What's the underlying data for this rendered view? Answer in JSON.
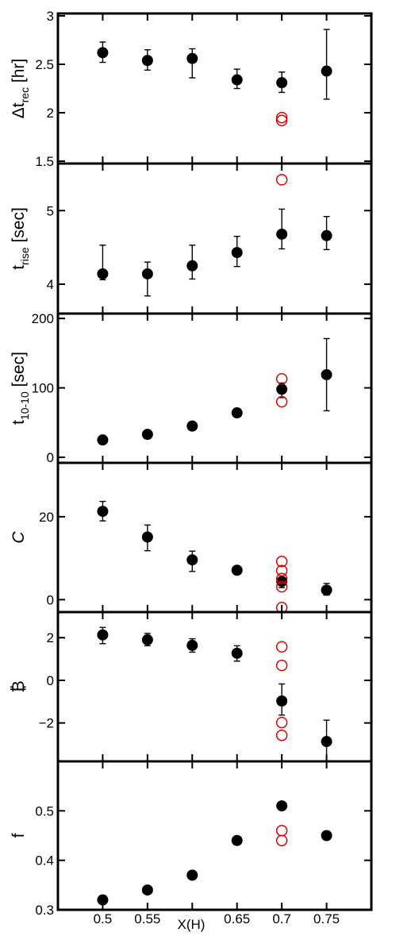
{
  "chart_data": {
    "type": "scatter",
    "x_axis": {
      "label": "X(H)",
      "ticks": [
        0.5,
        0.55,
        0.6,
        0.65,
        0.7,
        0.75
      ],
      "tick_labels": [
        "0.5",
        "0.55",
        "",
        "0.65",
        "0.7",
        "0.75"
      ],
      "range": [
        0.45,
        0.8
      ]
    },
    "colors": {
      "filled": "#000000",
      "open": "#dd0000"
    },
    "panels": [
      {
        "id": "dt_rec",
        "ylabel_main": "Δt",
        "ylabel_sub": "rec",
        "ylabel_unit": " [hr]",
        "ylim": [
          1.5,
          3.0
        ],
        "yticks": [
          1.5,
          2,
          2.5,
          3
        ],
        "ytick_labels": [
          "1.5",
          "2",
          "2.5",
          "3"
        ],
        "filled": [
          {
            "x": 0.5,
            "y": 2.62,
            "lo": 2.52,
            "hi": 2.73
          },
          {
            "x": 0.55,
            "y": 2.54,
            "lo": 2.44,
            "hi": 2.65
          },
          {
            "x": 0.6,
            "y": 2.56,
            "lo": 2.36,
            "hi": 2.66
          },
          {
            "x": 0.65,
            "y": 2.34,
            "lo": 2.25,
            "hi": 2.45
          },
          {
            "x": 0.7,
            "y": 2.31,
            "lo": 2.21,
            "hi": 2.42
          },
          {
            "x": 0.75,
            "y": 2.43,
            "lo": 2.14,
            "hi": 2.86
          }
        ],
        "open": [
          {
            "x": 0.7,
            "y": 1.95
          },
          {
            "x": 0.7,
            "y": 1.92
          }
        ]
      },
      {
        "id": "t_rise",
        "ylabel_main": "t",
        "ylabel_sub": "rise",
        "ylabel_unit": " [sec]",
        "ylim": [
          3.6,
          5.64
        ],
        "yticks": [
          4,
          5
        ],
        "ytick_labels": [
          "4",
          "5"
        ],
        "filled": [
          {
            "x": 0.5,
            "y": 4.14,
            "lo": 4.06,
            "hi": 4.53
          },
          {
            "x": 0.55,
            "y": 4.14,
            "lo": 3.84,
            "hi": 4.3
          },
          {
            "x": 0.6,
            "y": 4.25,
            "lo": 4.07,
            "hi": 4.53
          },
          {
            "x": 0.65,
            "y": 4.43,
            "lo": 4.24,
            "hi": 4.65
          },
          {
            "x": 0.7,
            "y": 4.68,
            "lo": 4.48,
            "hi": 5.02
          },
          {
            "x": 0.75,
            "y": 4.66,
            "lo": 4.47,
            "hi": 4.92
          }
        ],
        "open": [
          {
            "x": 0.7,
            "y": 5.42
          }
        ]
      },
      {
        "id": "t_10_10",
        "ylabel_main": "t",
        "ylabel_sub": "10-10",
        "ylabel_unit": " [sec]",
        "ylim": [
          -8,
          207
        ],
        "yticks": [
          0,
          100,
          200
        ],
        "ytick_labels": [
          "0",
          "100",
          "200"
        ],
        "filled": [
          {
            "x": 0.5,
            "y": 25
          },
          {
            "x": 0.55,
            "y": 33
          },
          {
            "x": 0.6,
            "y": 45
          },
          {
            "x": 0.65,
            "y": 64,
            "lo": 58,
            "hi": 70
          },
          {
            "x": 0.7,
            "y": 98,
            "lo": 86,
            "hi": 107
          },
          {
            "x": 0.75,
            "y": 119,
            "lo": 67,
            "hi": 171
          }
        ],
        "open": [
          {
            "x": 0.7,
            "y": 113
          },
          {
            "x": 0.7,
            "y": 80
          }
        ]
      },
      {
        "id": "C",
        "ylabel_main": "C",
        "ylabel_sub": "",
        "ylabel_unit": "",
        "italic": true,
        "ylim": [
          -3,
          33
        ],
        "yticks": [
          0,
          20
        ],
        "ytick_labels": [
          "0",
          "20"
        ],
        "filled": [
          {
            "x": 0.5,
            "y": 21.3,
            "lo": 19.0,
            "hi": 23.7
          },
          {
            "x": 0.55,
            "y": 15.1,
            "lo": 11.8,
            "hi": 18.0
          },
          {
            "x": 0.6,
            "y": 9.6,
            "lo": 6.8,
            "hi": 11.7
          },
          {
            "x": 0.65,
            "y": 7.1
          },
          {
            "x": 0.7,
            "y": 4.4,
            "lo": 2.9,
            "hi": 5.2
          },
          {
            "x": 0.75,
            "y": 2.3,
            "lo": 1.1,
            "hi": 3.9
          }
        ],
        "open": [
          {
            "x": 0.7,
            "y": 9.2
          },
          {
            "x": 0.7,
            "y": 7.0
          },
          {
            "x": 0.7,
            "y": 5.1
          },
          {
            "x": 0.7,
            "y": 3.1
          },
          {
            "x": 0.7,
            "y": -1.9
          }
        ]
      },
      {
        "id": "beta",
        "ylabel_main": "₿",
        "ylabel_sub": "",
        "ylabel_unit": "",
        "ylim": [
          -3.8,
          3.2
        ],
        "yticks": [
          -2,
          0,
          2
        ],
        "ytick_labels": [
          "−2",
          "0",
          "2"
        ],
        "filled": [
          {
            "x": 0.5,
            "y": 2.13,
            "lo": 1.72,
            "hi": 2.48
          },
          {
            "x": 0.55,
            "y": 1.9,
            "lo": 1.62,
            "hi": 2.2
          },
          {
            "x": 0.6,
            "y": 1.64,
            "lo": 1.32,
            "hi": 1.95
          },
          {
            "x": 0.65,
            "y": 1.27,
            "lo": 0.9,
            "hi": 1.62
          },
          {
            "x": 0.7,
            "y": -0.97,
            "lo": -1.63,
            "hi": -0.17
          },
          {
            "x": 0.75,
            "y": -2.87,
            "lo": -3.82,
            "hi": -1.87
          }
        ],
        "open": [
          {
            "x": 0.7,
            "y": 1.57
          },
          {
            "x": 0.7,
            "y": 0.7
          },
          {
            "x": 0.7,
            "y": -1.98
          },
          {
            "x": 0.7,
            "y": -2.58
          }
        ]
      },
      {
        "id": "f",
        "ylabel_main": "f",
        "ylabel_sub": "",
        "ylabel_unit": "",
        "ylim": [
          0.3,
          0.6
        ],
        "yticks": [
          0.3,
          0.4,
          0.5
        ],
        "ytick_labels": [
          "0.3",
          "0.4",
          "0.5"
        ],
        "filled": [
          {
            "x": 0.5,
            "y": 0.32
          },
          {
            "x": 0.55,
            "y": 0.34
          },
          {
            "x": 0.6,
            "y": 0.37
          },
          {
            "x": 0.65,
            "y": 0.44
          },
          {
            "x": 0.7,
            "y": 0.51
          },
          {
            "x": 0.75,
            "y": 0.45
          }
        ],
        "open": [
          {
            "x": 0.7,
            "y": 0.46
          },
          {
            "x": 0.7,
            "y": 0.44
          }
        ]
      }
    ]
  }
}
